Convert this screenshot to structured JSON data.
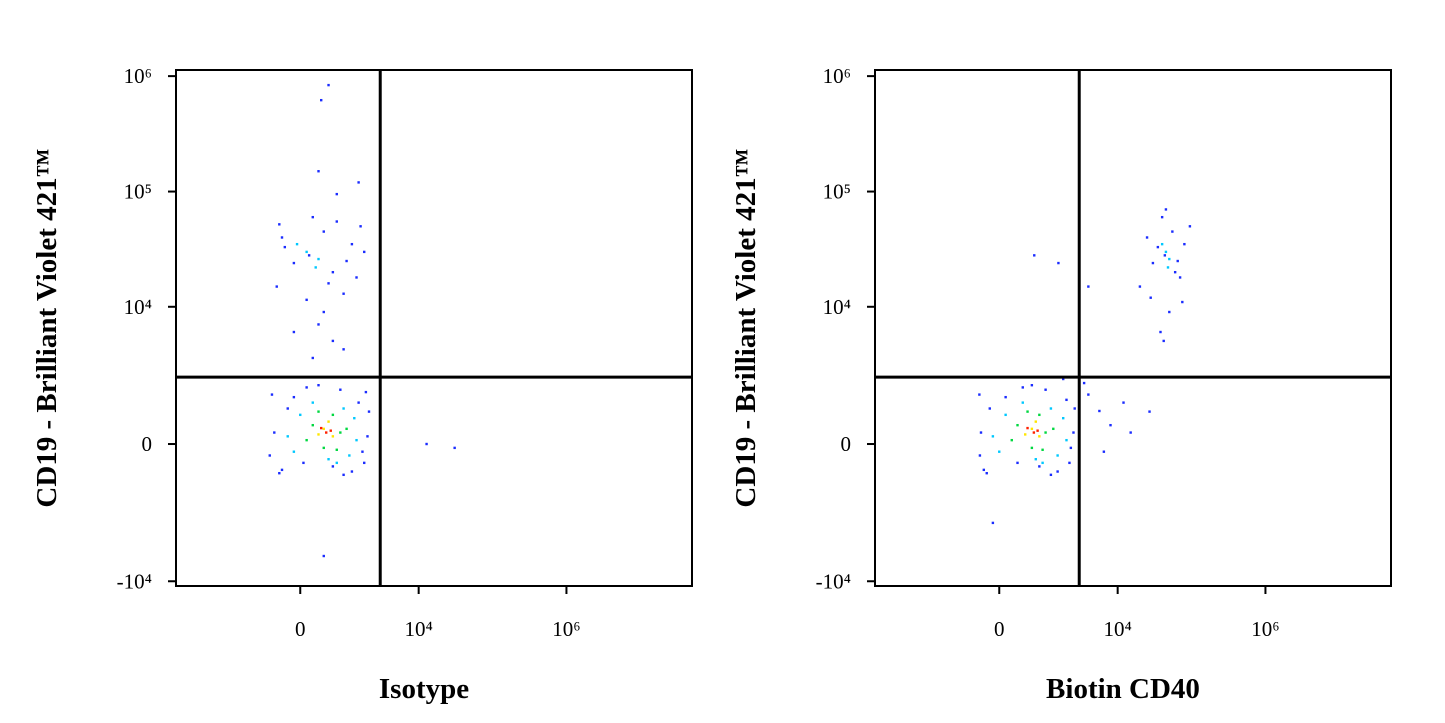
{
  "chart_data": [
    {
      "type": "scatter",
      "xlabel": "Isotype",
      "ylabel": "CD19 - Brilliant Violet 421™",
      "xscale": "biexponential",
      "yscale": "biexponential",
      "xlim": [
        -12000,
        50000000
      ],
      "ylim": [
        -11000,
        1130000
      ],
      "xticks": [
        0,
        {
          "value": 10000,
          "label": "10⁴"
        },
        {
          "value": 1000000,
          "label": "10⁶"
        }
      ],
      "yticks": [
        {
          "value": -10000,
          "label": "-10⁴"
        },
        0,
        {
          "value": 10000,
          "label": "10⁴"
        },
        {
          "value": 100000,
          "label": "10⁵"
        },
        {
          "value": 1000000,
          "label": "10⁶"
        }
      ],
      "gate": {
        "x": 3000,
        "y": 2300
      },
      "series": [
        {
          "color": "#1a2cff",
          "x": [
            -500,
            -300,
            2000,
            1800,
            -450,
            100,
            900,
            1500,
            -200,
            600,
            2100,
            -550,
            300,
            1200,
            1900,
            -350,
            50,
            1700,
            -100,
            800,
            140,
            -300,
            600,
            1200,
            -400,
            1600,
            200,
            900,
            -100,
            400,
            1400,
            -250,
            700,
            1000,
            100,
            -350,
            1800,
            500,
            300,
            600,
            200,
            900,
            400,
            -100,
            700,
            300,
            1500,
            350,
            500,
            12800,
            30700,
            400
          ],
          "y": [
            1500,
            -700,
            200,
            -500,
            300,
            1800,
            -850,
            1200,
            1000,
            -600,
            900,
            -300,
            1900,
            -750,
            1600,
            -800,
            -500,
            -200,
            1400,
            1700,
            28000,
            40000,
            20000,
            35000,
            15000,
            50000,
            60000,
            13000,
            24000,
            45000,
            18000,
            33000,
            55000,
            25000,
            11500,
            52000,
            30000,
            16000,
            7000,
            5000,
            3500,
            4200,
            9000,
            6000,
            95000,
            150000,
            120000,
            619000,
            836000,
            0,
            -100,
            -6000
          ]
        },
        {
          "color": "#00c8ff",
          "x": [
            0,
            1100,
            -200,
            1300,
            500,
            200,
            900,
            -100,
            1400,
            700,
            100,
            300,
            -50,
            250
          ],
          "y": [
            800,
            -300,
            200,
            700,
            -400,
            1200,
            1000,
            -200,
            100,
            -500,
            30000,
            26000,
            35000,
            22000
          ]
        },
        {
          "color": "#00d840",
          "x": [
            200,
            800,
            400,
            600,
            100,
            1000,
            300,
            700
          ],
          "y": [
            500,
            300,
            -100,
            800,
            100,
            400,
            900,
            -150
          ]
        },
        {
          "color": "#ffe600",
          "x": [
            400,
            600,
            300,
            500
          ],
          "y": [
            400,
            200,
            250,
            600
          ]
        },
        {
          "color": "#ff2000",
          "x": [
            450,
            350,
            550
          ],
          "y": [
            300,
            420,
            350
          ]
        }
      ]
    },
    {
      "type": "scatter",
      "xlabel": "Biotin CD40",
      "ylabel": "CD19 - Brilliant Violet 421™",
      "xscale": "biexponential",
      "yscale": "biexponential",
      "xlim": [
        -12000,
        50000000
      ],
      "ylim": [
        -11000,
        1130000
      ],
      "xticks": [
        0,
        {
          "value": 10000,
          "label": "10⁴"
        },
        {
          "value": 1000000,
          "label": "10⁶"
        }
      ],
      "yticks": [
        {
          "value": -10000,
          "label": "-10⁴"
        },
        0,
        {
          "value": 10000,
          "label": "10⁴"
        },
        {
          "value": 100000,
          "label": "10⁵"
        },
        {
          "value": 1000000,
          "label": "10⁶"
        }
      ],
      "gate": {
        "x": 3000,
        "y": 2300
      },
      "series": [
        {
          "color": "#1a2cff",
          "x": [
            -330,
            -250,
            2500,
            2200,
            -300,
            400,
            1200,
            2000,
            -150,
            800,
            2600,
            -320,
            600,
            1500,
            -200,
            300,
            2300,
            100,
            1000,
            1800,
            5650,
            8000,
            12000,
            27000,
            4000,
            6500,
            15000,
            3500,
            43500,
            25000,
            60000,
            80000,
            20000,
            95000,
            40000,
            50000,
            30000,
            55000,
            70000,
            35000,
            45000,
            65000,
            38000,
            42000,
            28000,
            75000,
            660,
            1540,
            4000,
            -100
          ],
          "y": [
            1500,
            -700,
            300,
            -500,
            300,
            1800,
            -850,
            1300,
            1000,
            -600,
            1000,
            -300,
            1900,
            -750,
            -800,
            -500,
            -100,
            1400,
            1700,
            2200,
            920,
            500,
            1200,
            900,
            1500,
            -200,
            300,
            2000,
            28000,
            40000,
            20000,
            35000,
            15000,
            50000,
            60000,
            9000,
            24000,
            45000,
            18000,
            33000,
            70000,
            25000,
            6000,
            5000,
            12000,
            11000,
            28000,
            24000,
            15000,
            -3000
          ]
        },
        {
          "color": "#00c8ff",
          "x": [
            100,
            1500,
            -100,
            1800,
            700,
            400,
            1200,
            0,
            2000,
            900,
            45000,
            50000,
            40000,
            48000
          ],
          "y": [
            800,
            -300,
            200,
            700,
            -400,
            1200,
            1000,
            -200,
            100,
            -500,
            30000,
            26000,
            35000,
            22000
          ]
        },
        {
          "color": "#00d840",
          "x": [
            300,
            1000,
            600,
            800,
            200,
            1300,
            500,
            900
          ],
          "y": [
            500,
            300,
            -100,
            800,
            100,
            400,
            900,
            -150
          ]
        },
        {
          "color": "#ffe600",
          "x": [
            600,
            800,
            450,
            700
          ],
          "y": [
            400,
            200,
            250,
            600
          ]
        },
        {
          "color": "#ff2000",
          "x": [
            650,
            500,
            750
          ],
          "y": [
            300,
            420,
            350
          ]
        }
      ]
    }
  ]
}
